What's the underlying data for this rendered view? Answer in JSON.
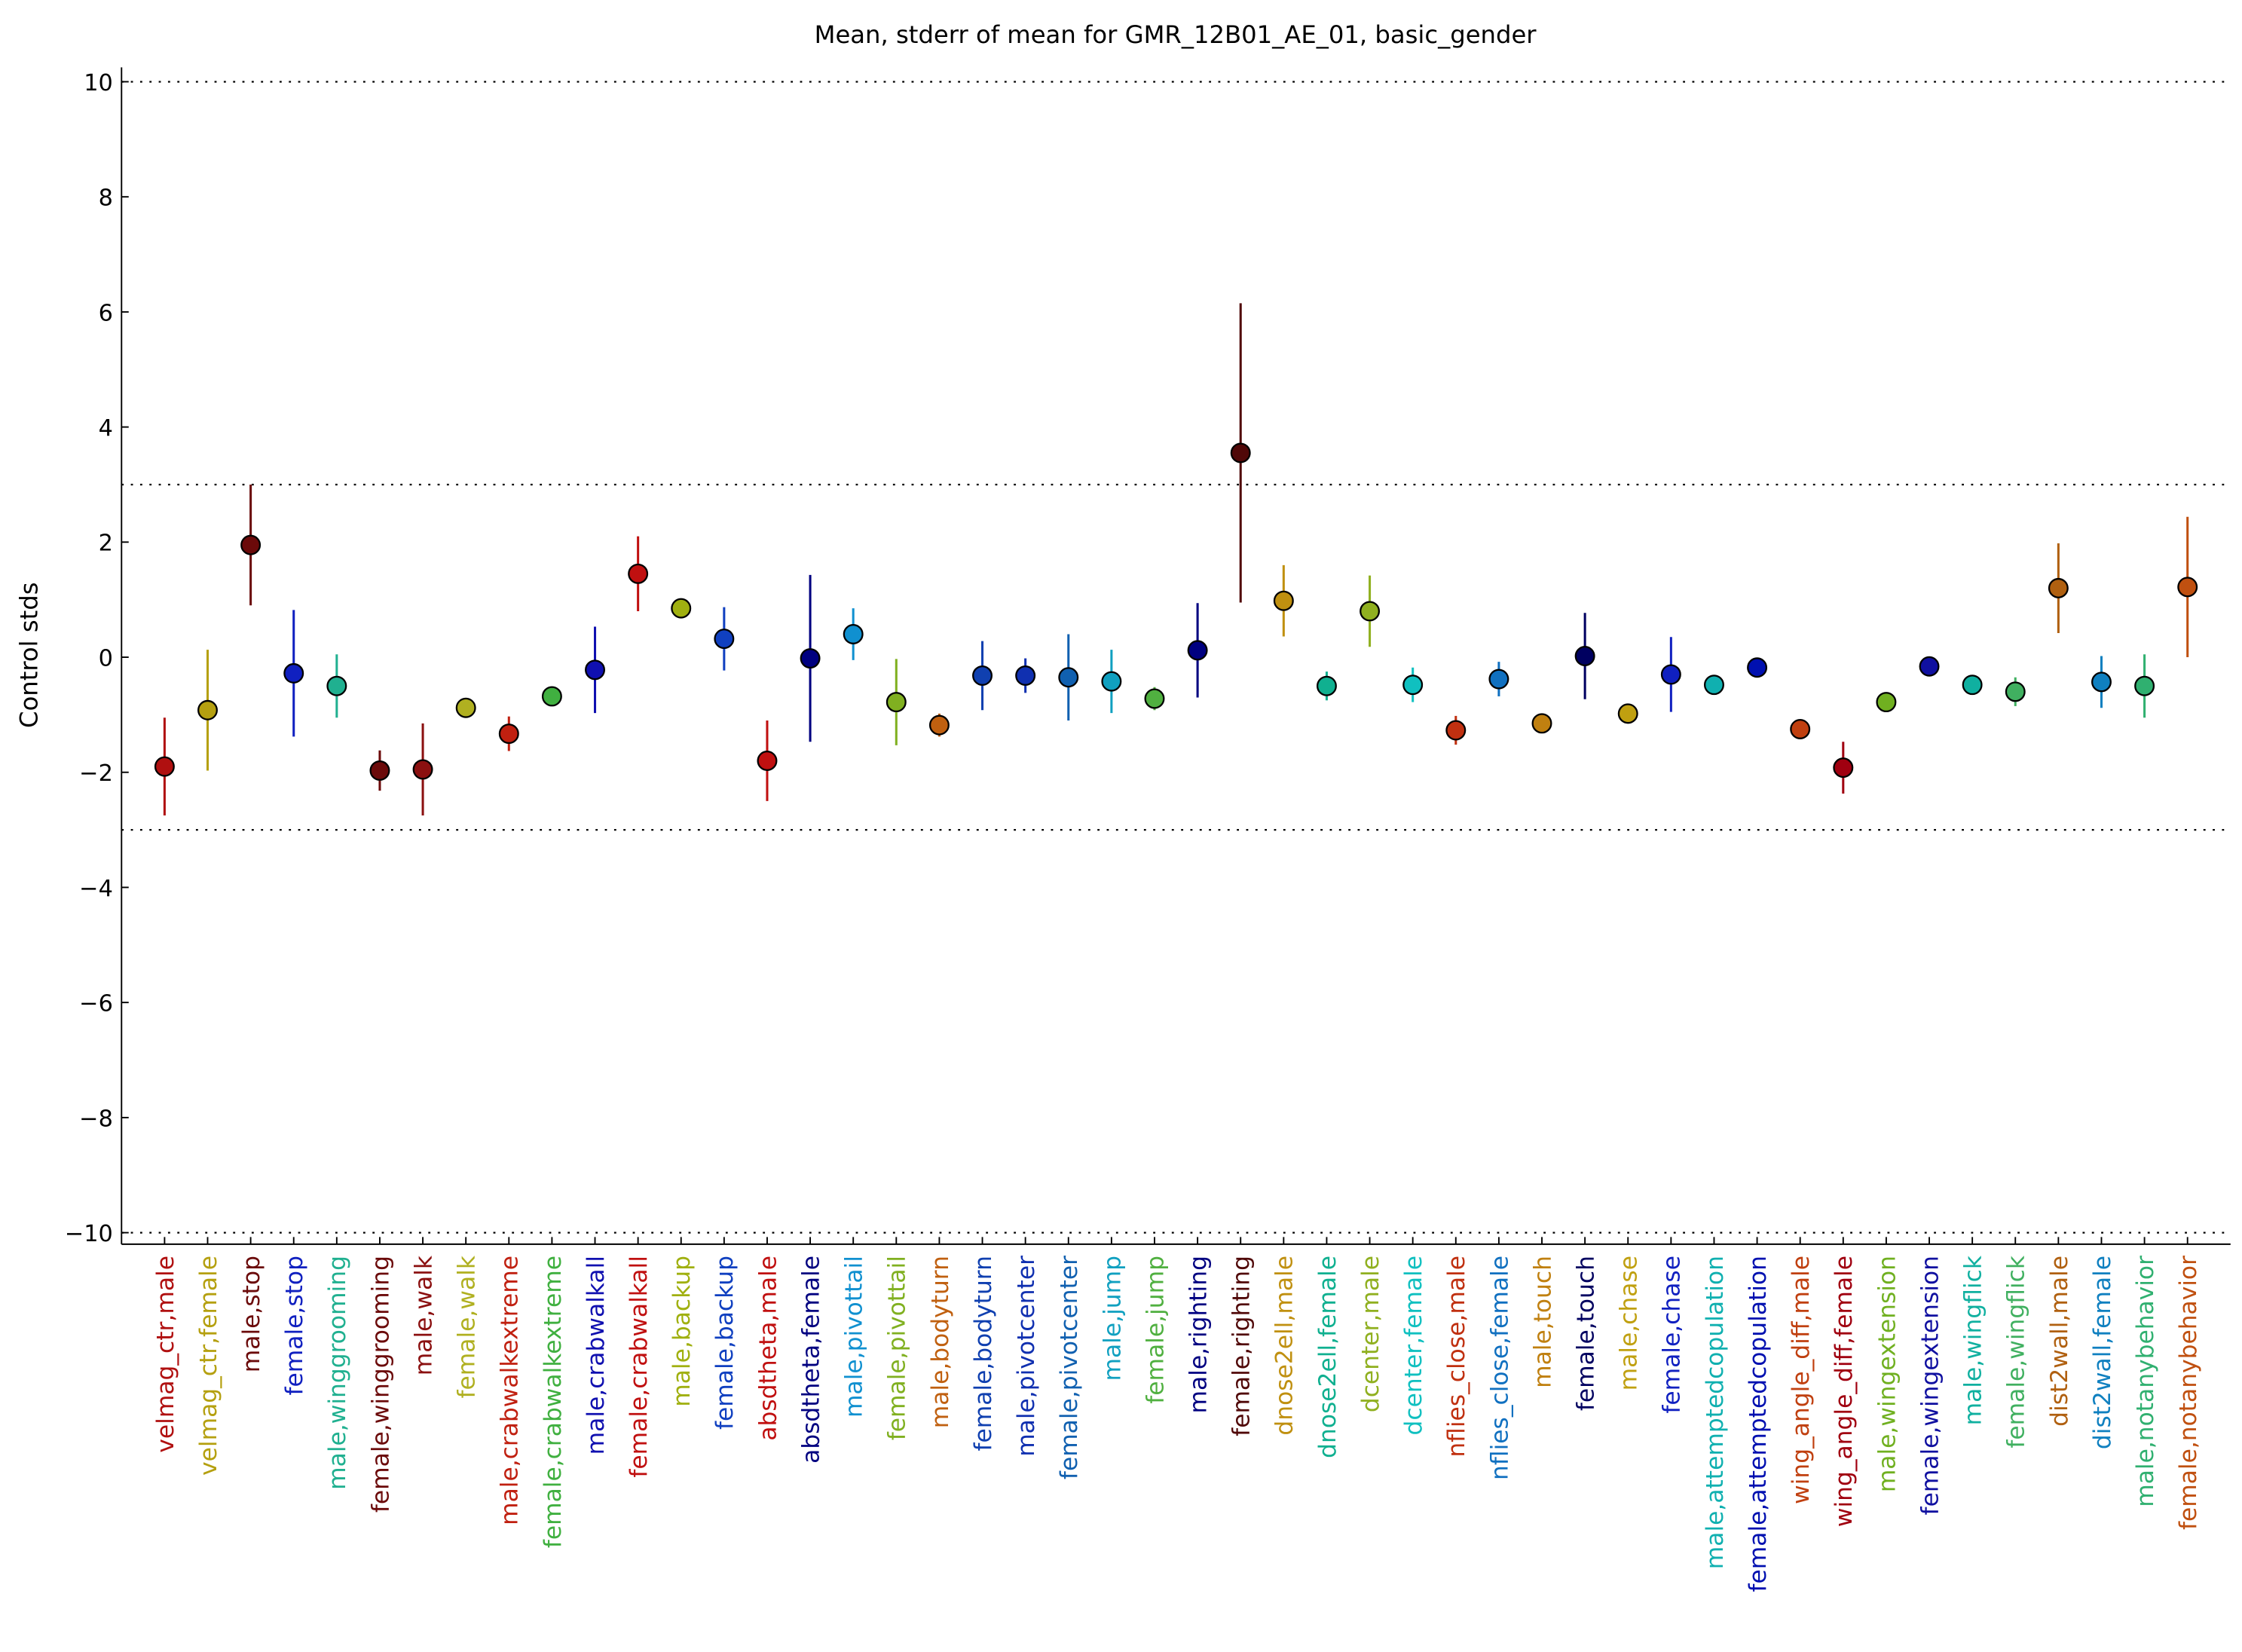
{
  "chart_data": {
    "type": "errorbar",
    "title": "Mean, stderr of mean for GMR_12B01_AE_01, basic_gender",
    "ylabel": "Control stds",
    "categories": [
      "velmag_ctr,male",
      "velmag_ctr,female",
      "male,stop",
      "female,stop",
      "male,winggrooming",
      "female,winggrooming",
      "male,walk",
      "female,walk",
      "male,crabwalkextreme",
      "female,crabwalkextreme",
      "male,crabwalkall",
      "female,crabwalkall",
      "male,backup",
      "female,backup",
      "absdtheta,male",
      "absdtheta,female",
      "male,pivottail",
      "female,pivottail",
      "male,bodyturn",
      "female,bodyturn",
      "male,pivotcenter",
      "female,pivotcenter",
      "male,jump",
      "female,jump",
      "male,righting",
      "female,righting",
      "dnose2ell,male",
      "dnose2ell,female",
      "dcenter,male",
      "dcenter,female",
      "nflies_close,male",
      "nflies_close,female",
      "male,touch",
      "female,touch",
      "male,chase",
      "female,chase",
      "male,attemptedcopulation",
      "female,attemptedcopulation",
      "wing_angle_diff,male",
      "wing_angle_diff,female",
      "male,wingextension",
      "female,wingextension",
      "male,wingflick",
      "female,wingflick",
      "dist2wall,male",
      "dist2wall,female",
      "male,notanybehavior",
      "female,notanybehavior"
    ],
    "values": [
      -1.9,
      -0.92,
      1.95,
      -0.28,
      -0.5,
      -1.97,
      -1.95,
      -0.88,
      -1.33,
      -0.68,
      -0.22,
      1.45,
      0.85,
      0.32,
      -1.8,
      -0.02,
      0.4,
      -0.78,
      -1.18,
      -0.32,
      -0.32,
      -0.35,
      -0.42,
      -0.72,
      0.12,
      3.55,
      0.98,
      -0.5,
      0.8,
      -0.48,
      -1.27,
      -0.38,
      -1.15,
      0.02,
      -0.98,
      -0.3,
      -0.48,
      -0.18,
      -1.25,
      -1.92,
      -0.78,
      -0.16,
      -0.48,
      -0.6,
      1.2,
      -0.43,
      -0.5,
      1.22
    ],
    "errors": [
      0.85,
      1.05,
      1.05,
      1.1,
      0.55,
      0.35,
      0.8,
      0.05,
      0.3,
      0.1,
      0.75,
      0.65,
      0.1,
      0.55,
      0.7,
      1.45,
      0.45,
      0.75,
      0.2,
      0.6,
      0.3,
      0.75,
      0.55,
      0.2,
      0.82,
      2.6,
      0.62,
      0.25,
      0.62,
      0.3,
      0.25,
      0.3,
      0.05,
      0.75,
      0.05,
      0.65,
      0.1,
      0.05,
      0.1,
      0.45,
      0.05,
      0.05,
      0.05,
      0.25,
      0.78,
      0.45,
      0.55,
      1.22
    ],
    "colors": [
      "#b01010",
      "#b5a010",
      "#6b0a0a",
      "#1020c0",
      "#20b090",
      "#6b0a0a",
      "#8b1010",
      "#b0b020",
      "#c02010",
      "#40b040",
      "#1010b0",
      "#c01010",
      "#a0b010",
      "#1040c0",
      "#c01010",
      "#000080",
      "#1090d0",
      "#80b020",
      "#c06010",
      "#1040b0",
      "#1030b0",
      "#1060b0",
      "#10a0c0",
      "#50b040",
      "#000080",
      "#500808",
      "#c09010",
      "#10b090",
      "#90b020",
      "#10c0c0",
      "#c03010",
      "#1070c0",
      "#c08010",
      "#000060",
      "#c0a010",
      "#1020c0",
      "#10b0b0",
      "#0010b0",
      "#c04010",
      "#a00010",
      "#70b020",
      "#1010a0",
      "#10b0a0",
      "#40b060",
      "#b06010",
      "#1080c0",
      "#30b070",
      "#c05010"
    ],
    "ylim": [
      -10.2,
      10.25
    ],
    "yticks": [
      {
        "value": -10,
        "label": "−10"
      },
      {
        "value": -8,
        "label": "−8"
      },
      {
        "value": -6,
        "label": "−6"
      },
      {
        "value": -4,
        "label": "−4"
      },
      {
        "value": -2,
        "label": "−2"
      },
      0,
      2,
      4,
      6,
      8,
      10
    ],
    "hlines": [
      10,
      3,
      -3,
      -10
    ]
  }
}
